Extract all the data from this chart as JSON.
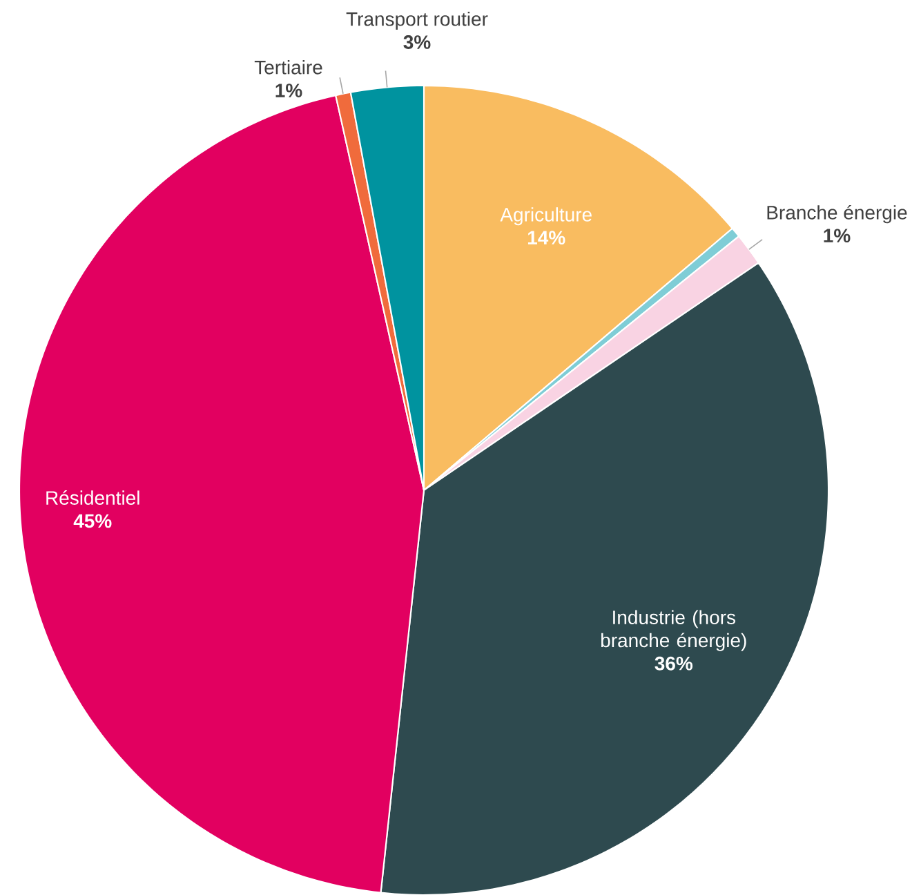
{
  "chart_data": {
    "type": "pie",
    "categories": [
      "Agriculture",
      null,
      "Branche énergie",
      "Industrie (hors branche énergie)",
      "Résidentiel",
      "Tertiaire",
      "Transport routier"
    ],
    "values": [
      13.8,
      0.4,
      1.3,
      36.2,
      44.8,
      0.6,
      2.9
    ],
    "value_labels": [
      "14%",
      null,
      "1%",
      "36%",
      "45%",
      "1%",
      "3%"
    ],
    "colors": [
      "#f9bc60",
      "#7fcdd6",
      "#f9d3e3",
      "#2e4a4f",
      "#e20060",
      "#f06b3c",
      "#00939f"
    ]
  }
}
